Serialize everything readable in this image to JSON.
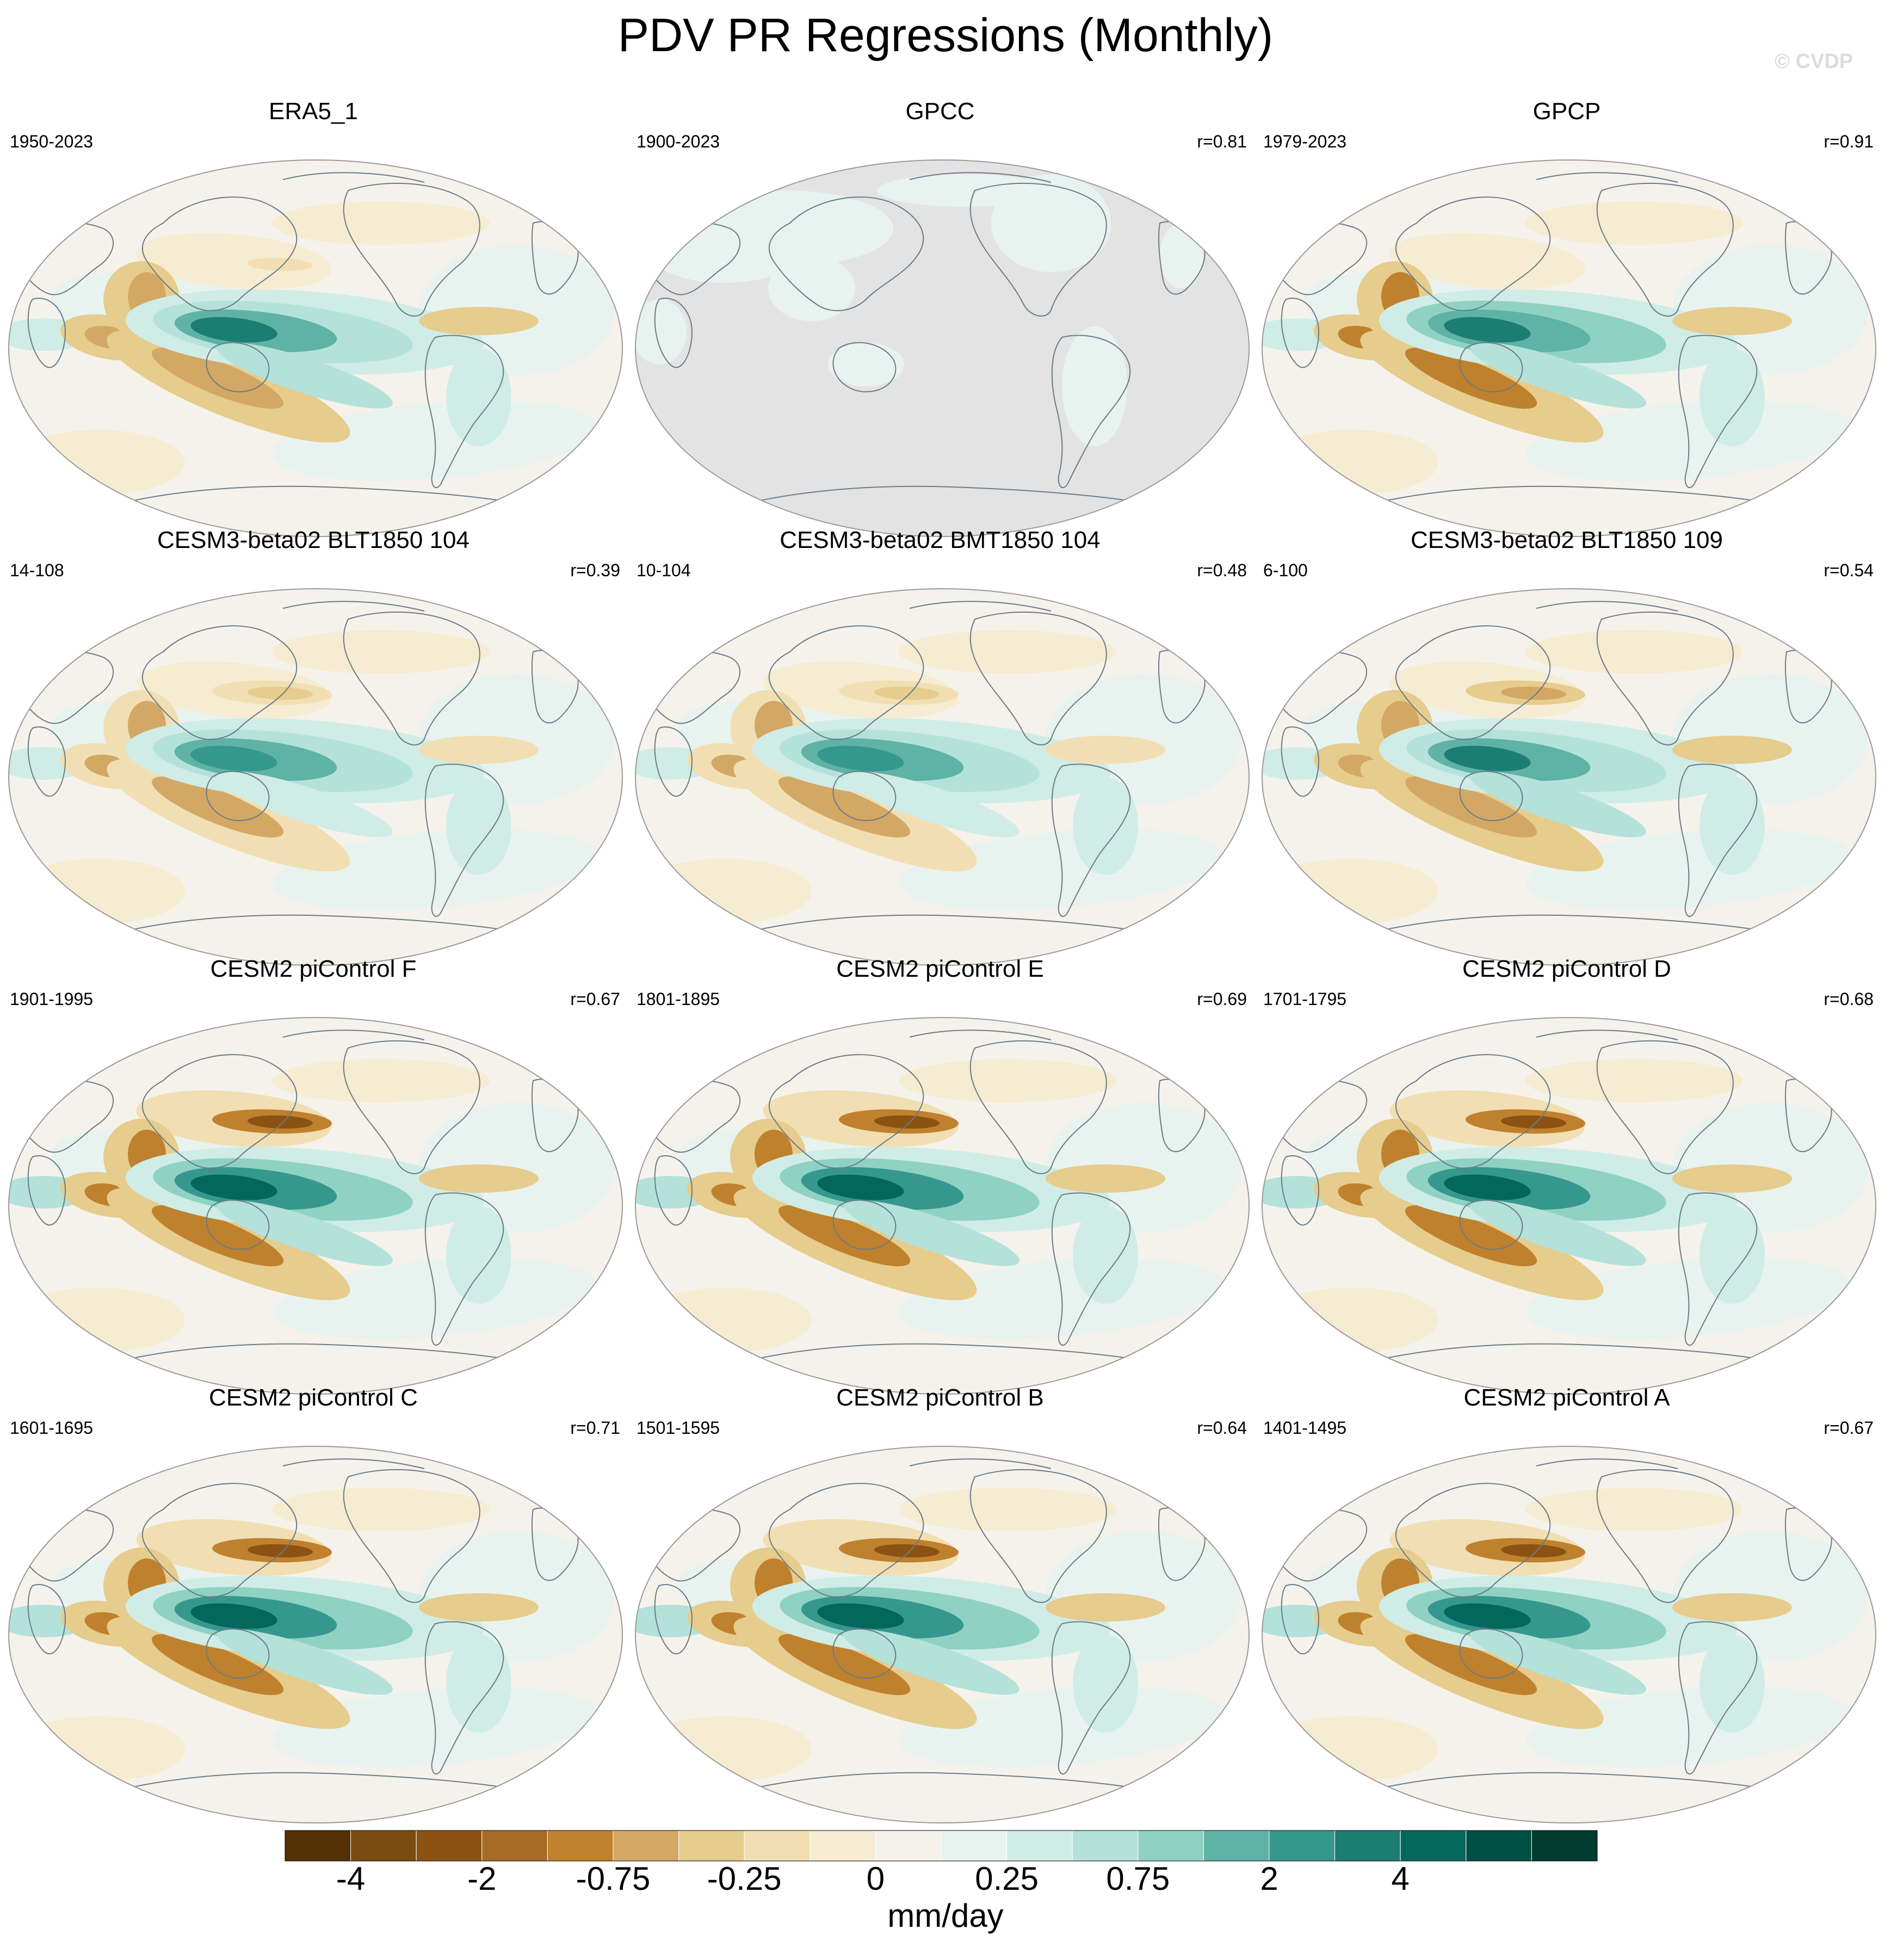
{
  "title": "PDV PR Regressions (Monthly)",
  "watermark": "© CVDP",
  "panels": [
    {
      "title": "ERA5_1",
      "years": "1950-2023",
      "r": "",
      "land_masked": false,
      "intensity": 0.85,
      "offzone": 0.3
    },
    {
      "title": "GPCC",
      "years": "1900-2023",
      "r": "r=0.81",
      "land_masked": true,
      "intensity": 0.4,
      "offzone": 0.0
    },
    {
      "title": "GPCP",
      "years": "1979-2023",
      "r": "r=0.91",
      "land_masked": false,
      "intensity": 0.9,
      "offzone": 0.2
    },
    {
      "title": "CESM3-beta02 BLT1850 104",
      "years": "14-108",
      "r": "r=0.39",
      "land_masked": false,
      "intensity": 0.8,
      "offzone": 0.6
    },
    {
      "title": "CESM3-beta02 BMT1850 104",
      "years": "10-104",
      "r": "r=0.48",
      "land_masked": false,
      "intensity": 0.8,
      "offzone": 0.6
    },
    {
      "title": "CESM3-beta02 BLT1850 109",
      "years": "6-100",
      "r": "r=0.54",
      "land_masked": false,
      "intensity": 0.85,
      "offzone": 0.65
    },
    {
      "title": "CESM2 piControl F",
      "years": "1901-1995",
      "r": "r=0.67",
      "land_masked": false,
      "intensity": 1.0,
      "offzone": 1.0
    },
    {
      "title": "CESM2 piControl E",
      "years": "1801-1895",
      "r": "r=0.69",
      "land_masked": false,
      "intensity": 1.0,
      "offzone": 1.0
    },
    {
      "title": "CESM2 piControl D",
      "years": "1701-1795",
      "r": "r=0.68",
      "land_masked": false,
      "intensity": 0.95,
      "offzone": 1.0
    },
    {
      "title": "CESM2 piControl C",
      "years": "1601-1695",
      "r": "r=0.71",
      "land_masked": false,
      "intensity": 1.0,
      "offzone": 1.0
    },
    {
      "title": "CESM2 piControl B",
      "years": "1501-1595",
      "r": "r=0.64",
      "land_masked": false,
      "intensity": 1.0,
      "offzone": 1.0
    },
    {
      "title": "CESM2 piControl A",
      "years": "1401-1495",
      "r": "r=0.67",
      "land_masked": false,
      "intensity": 1.0,
      "offzone": 1.0
    }
  ],
  "colorbar": {
    "units": "mm/day",
    "colors": [
      "#543005",
      "#7a4a0e",
      "#8c5213",
      "#a76b25",
      "#bf812d",
      "#d3a865",
      "#e6cc8d",
      "#f1dfb3",
      "#f6ecd2",
      "#f5f2ec",
      "#e8f3f0",
      "#d0ece6",
      "#b4e2da",
      "#8fd2c4",
      "#5fb2a6",
      "#36978e",
      "#1c7d74",
      "#03675d",
      "#004f45",
      "#003c30"
    ],
    "tick_labels": [
      "-4",
      "-2",
      "-0.75",
      "-0.25",
      "0",
      "0.25",
      "0.75",
      "2",
      "4"
    ],
    "tick_boundaries": [
      2,
      4,
      6,
      8,
      10,
      12,
      14,
      16,
      18
    ]
  }
}
